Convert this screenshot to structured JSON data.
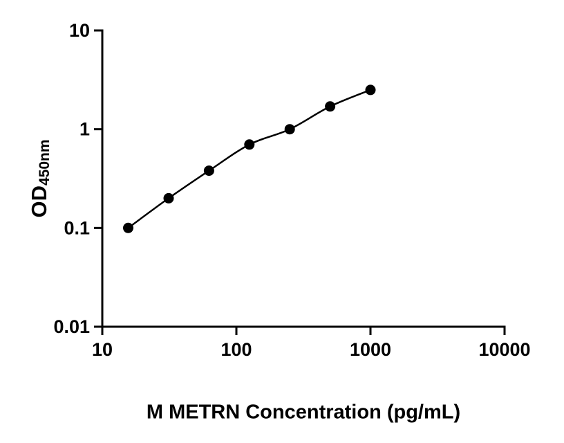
{
  "chart": {
    "xlabel": "M METRN Concentration (pg/mL)",
    "ylabel_main": "OD",
    "ylabel_sub": "450nm"
  },
  "chart_data": {
    "type": "scatter",
    "title": "",
    "xlabel": "M METRN Concentration (pg/mL)",
    "ylabel": "OD450nm",
    "xscale": "log",
    "yscale": "log",
    "xlim": [
      10,
      10000
    ],
    "ylim": [
      0.01,
      10
    ],
    "x": [
      15.6,
      31.25,
      62.5,
      125,
      250,
      500,
      1000
    ],
    "y": [
      0.1,
      0.2,
      0.38,
      0.7,
      1.0,
      1.7,
      2.5
    ],
    "x_ticks": [
      10,
      100,
      1000,
      10000
    ],
    "x_tick_labels": [
      "10",
      "100",
      "1000",
      "10000"
    ],
    "y_ticks": [
      0.01,
      0.1,
      1,
      10
    ],
    "y_tick_labels": [
      "0.01",
      "0.1",
      "1",
      "10"
    ],
    "grid": false,
    "legend": false,
    "marker": "circle",
    "marker_color": "#000000",
    "line_color": "#000000",
    "background_color": "#ffffff"
  }
}
